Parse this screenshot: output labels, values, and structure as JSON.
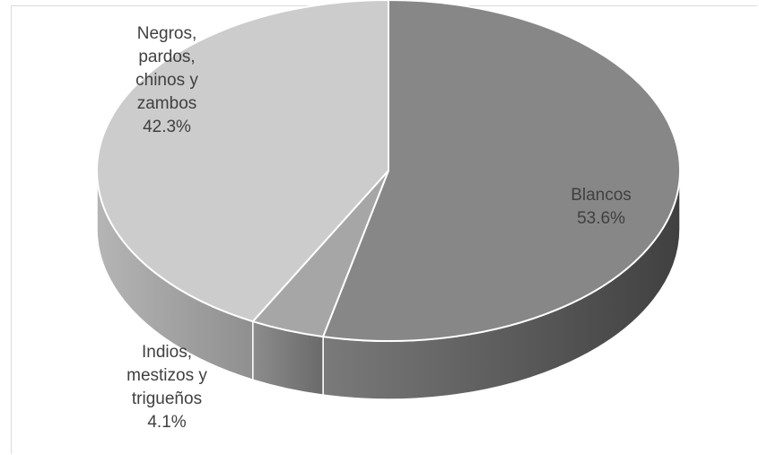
{
  "chart_data": {
    "type": "pie",
    "style": "3d",
    "title": "",
    "slices": [
      {
        "label_lines": [
          "Blancos"
        ],
        "percent_label": "53.6%",
        "value": 53.6,
        "color": "#878787",
        "side_color": "#595959"
      },
      {
        "label_lines": [
          "Indios,",
          "mestizos y",
          "trigueños"
        ],
        "percent_label": "4.1%",
        "value": 4.1,
        "color": "#a6a6a6",
        "side_color": "#6e6e6e"
      },
      {
        "label_lines": [
          "Negros,",
          "pardos,",
          "chinos y",
          "zambos"
        ],
        "percent_label": "42.3%",
        "value": 42.3,
        "color": "#cccccc",
        "side_color": "#a3a3a3"
      }
    ]
  }
}
